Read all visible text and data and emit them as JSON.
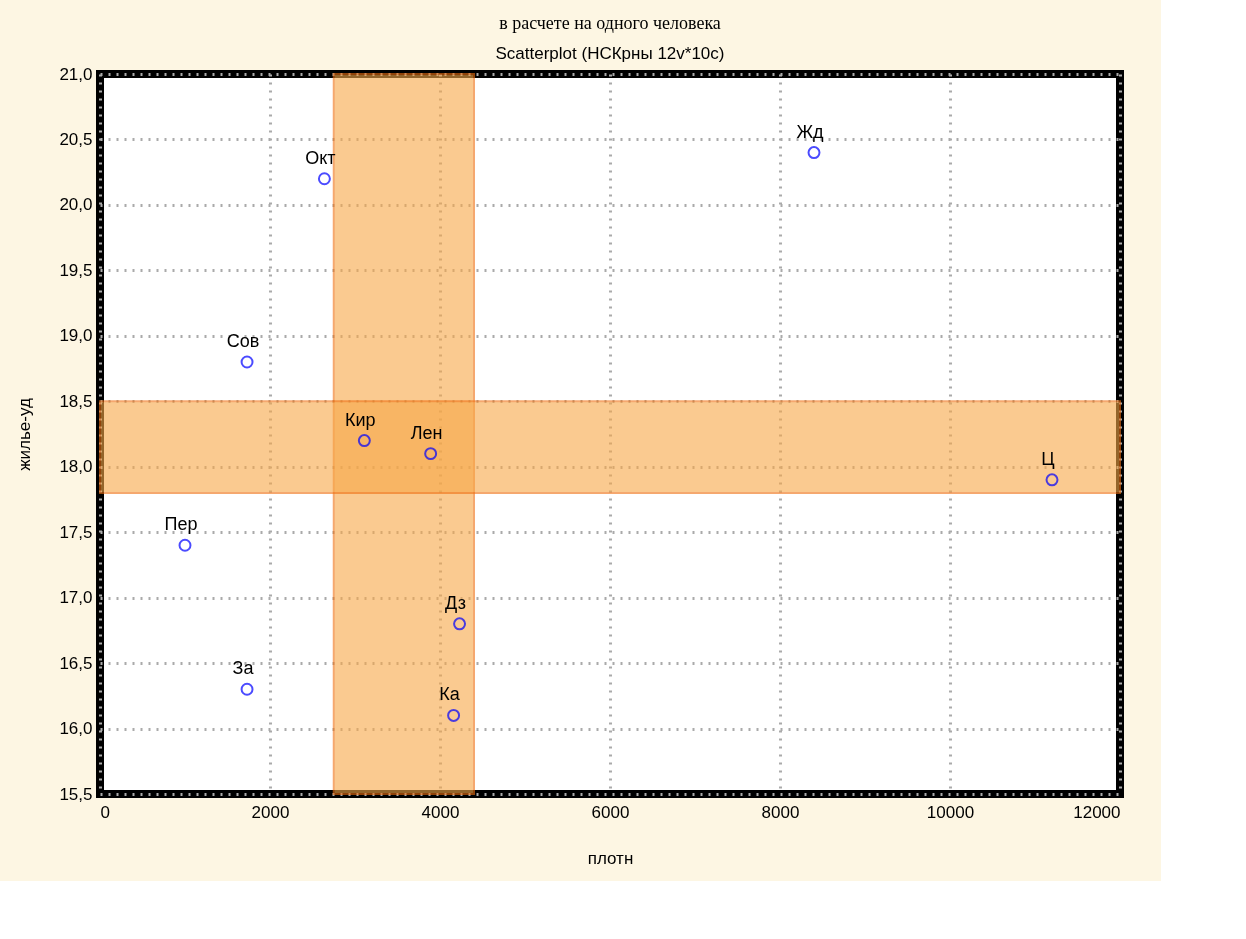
{
  "chart_data": {
    "type": "scatter",
    "title": "Scatterplot (НСКрны 12v*10c)",
    "xlabel": "плотн",
    "ylabel": "жилье-уд",
    "series": [
      {
        "color": "#0000ff",
        "x": [
          2640,
          8400,
          1730,
          3110,
          3890,
          11200,
          1000,
          4230,
          1730,
          4160
        ],
        "values": [
          20.2,
          20.4,
          18.8,
          18.2,
          18.1,
          17.9,
          17.4,
          16.8,
          16.3,
          16.1
        ]
      }
    ],
    "annotations": [
      "в расчете на одного человека",
      {
        "text": "Окт",
        "x": 2640,
        "y": 20.2
      },
      {
        "text": "Жд",
        "x": 8400,
        "y": 20.4
      },
      {
        "text": "Сов",
        "x": 1730,
        "y": 18.8
      },
      {
        "text": "Кир",
        "x": 3110,
        "y": 18.2
      },
      {
        "text": "Лен",
        "x": 3890,
        "y": 18.1
      },
      {
        "text": "Ц",
        "x": 11200,
        "y": 17.9
      },
      {
        "text": "Пер",
        "x": 1000,
        "y": 17.4
      },
      {
        "text": "Дз",
        "x": 4230,
        "y": 16.8
      },
      {
        "text": "За",
        "x": 1730,
        "y": 16.3
      },
      {
        "text": "Ка",
        "x": 4160,
        "y": 16.1
      }
    ],
    "bands": [
      {
        "axis": "x",
        "from": 2750,
        "to": 4400,
        "color": "#f7a848"
      },
      {
        "axis": "y",
        "from": 17.8,
        "to": 18.5,
        "color": "#f7a848"
      }
    ],
    "xlim": [
      0,
      12000
    ],
    "xticks": [
      0,
      2000,
      4000,
      6000,
      8000,
      10000,
      12000
    ],
    "ylim": [
      15.5,
      21.0
    ],
    "yticks": [
      {
        "value": 15.5,
        "label": "15,5"
      },
      {
        "value": 16.0,
        "label": "16,0"
      },
      {
        "value": 16.5,
        "label": "16,5"
      },
      {
        "value": 17.0,
        "label": "17,0"
      },
      {
        "value": 17.5,
        "label": "17,5"
      },
      {
        "value": 18.0,
        "label": "18,0"
      },
      {
        "value": 18.5,
        "label": "18,5"
      },
      {
        "value": 19.0,
        "label": "19,0"
      },
      {
        "value": 19.5,
        "label": "19,5"
      },
      {
        "value": 20.0,
        "label": "20,0"
      },
      {
        "value": 20.5,
        "label": "20,5"
      },
      {
        "value": 21.0,
        "label": "21,0"
      }
    ],
    "grid": true,
    "marker": "circle"
  }
}
